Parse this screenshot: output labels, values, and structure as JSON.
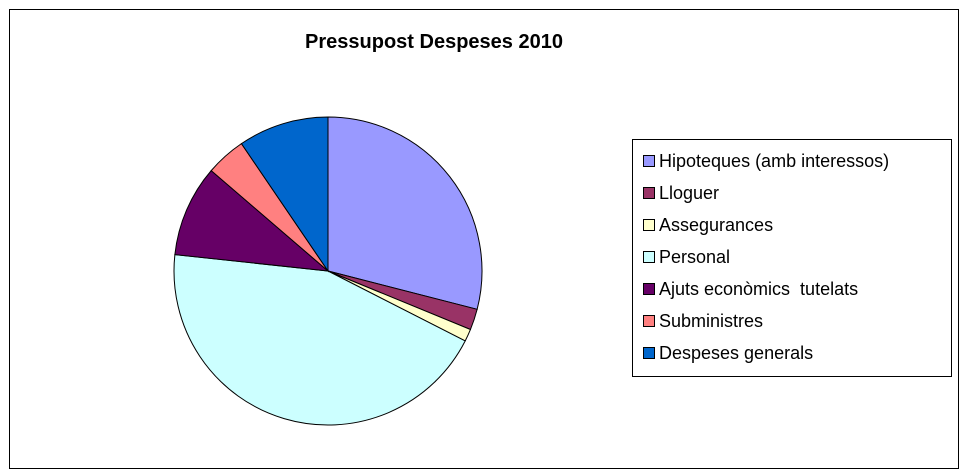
{
  "chart_data": {
    "type": "pie",
    "title": "Pressupost Despeses 2010",
    "legend_position": "right",
    "start_angle": "12 o'clock",
    "direction": "clockwise",
    "series": [
      {
        "name": "Hipoteques (amb interessos)",
        "value": 29.0,
        "color": "#9999ff"
      },
      {
        "name": "Lloguer",
        "value": 2.2,
        "color": "#993366"
      },
      {
        "name": "Assegurances",
        "value": 1.3,
        "color": "#ffffcc"
      },
      {
        "name": "Personal",
        "value": 44.2,
        "color": "#ccffff"
      },
      {
        "name": "Ajuts econòmics  tutelats",
        "value": 9.6,
        "color": "#660066"
      },
      {
        "name": "Subministres",
        "value": 4.2,
        "color": "#ff8080"
      },
      {
        "name": "Despeses generals",
        "value": 9.5,
        "color": "#0066cc"
      }
    ]
  }
}
